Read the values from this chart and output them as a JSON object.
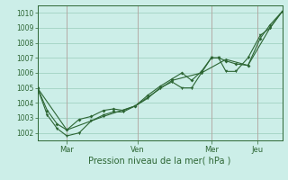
{
  "xlabel": "Pression niveau de la mer( hPa )",
  "bg_color": "#cceee8",
  "grid_color": "#99ccbb",
  "line_color": "#2d6634",
  "vline_color": "#bb9999",
  "ylim": [
    1001.5,
    1010.5
  ],
  "yticks": [
    1002,
    1003,
    1004,
    1005,
    1006,
    1007,
    1008,
    1009,
    1010
  ],
  "day_labels": [
    "Mar",
    "Ven",
    "Mer",
    "Jeu"
  ],
  "day_positions": [
    0.12,
    0.41,
    0.71,
    0.9
  ],
  "xlim": [
    0.0,
    1.0
  ],
  "series1_x": [
    0.0,
    0.04,
    0.08,
    0.12,
    0.17,
    0.22,
    0.27,
    0.31,
    0.35,
    0.4,
    0.45,
    0.5,
    0.55,
    0.59,
    0.63,
    0.67,
    0.71,
    0.74,
    0.77,
    0.81,
    0.86,
    0.91,
    0.95,
    1.0
  ],
  "series1_y": [
    1005.0,
    1003.5,
    1002.6,
    1002.2,
    1002.9,
    1003.1,
    1003.5,
    1003.6,
    1003.5,
    1003.8,
    1004.5,
    1005.1,
    1005.6,
    1006.0,
    1005.5,
    1006.1,
    1007.0,
    1007.0,
    1006.8,
    1006.6,
    1006.5,
    1008.3,
    1009.2,
    1010.1
  ],
  "series2_x": [
    0.0,
    0.04,
    0.08,
    0.12,
    0.17,
    0.22,
    0.27,
    0.31,
    0.35,
    0.4,
    0.45,
    0.5,
    0.55,
    0.59,
    0.63,
    0.67,
    0.71,
    0.74,
    0.77,
    0.81,
    0.86,
    0.91,
    0.95,
    1.0
  ],
  "series2_y": [
    1005.0,
    1003.2,
    1002.3,
    1001.8,
    1002.0,
    1002.8,
    1003.2,
    1003.4,
    1003.4,
    1003.8,
    1004.3,
    1005.0,
    1005.4,
    1005.0,
    1005.0,
    1006.0,
    1007.0,
    1007.0,
    1006.1,
    1006.1,
    1007.0,
    1008.5,
    1009.0,
    1010.1
  ],
  "series3_x": [
    0.0,
    0.12,
    0.27,
    0.4,
    0.55,
    0.67,
    0.77,
    0.86,
    0.95,
    1.0
  ],
  "series3_y": [
    1005.0,
    1002.2,
    1003.1,
    1003.8,
    1005.5,
    1006.0,
    1006.9,
    1006.5,
    1009.0,
    1010.1
  ]
}
